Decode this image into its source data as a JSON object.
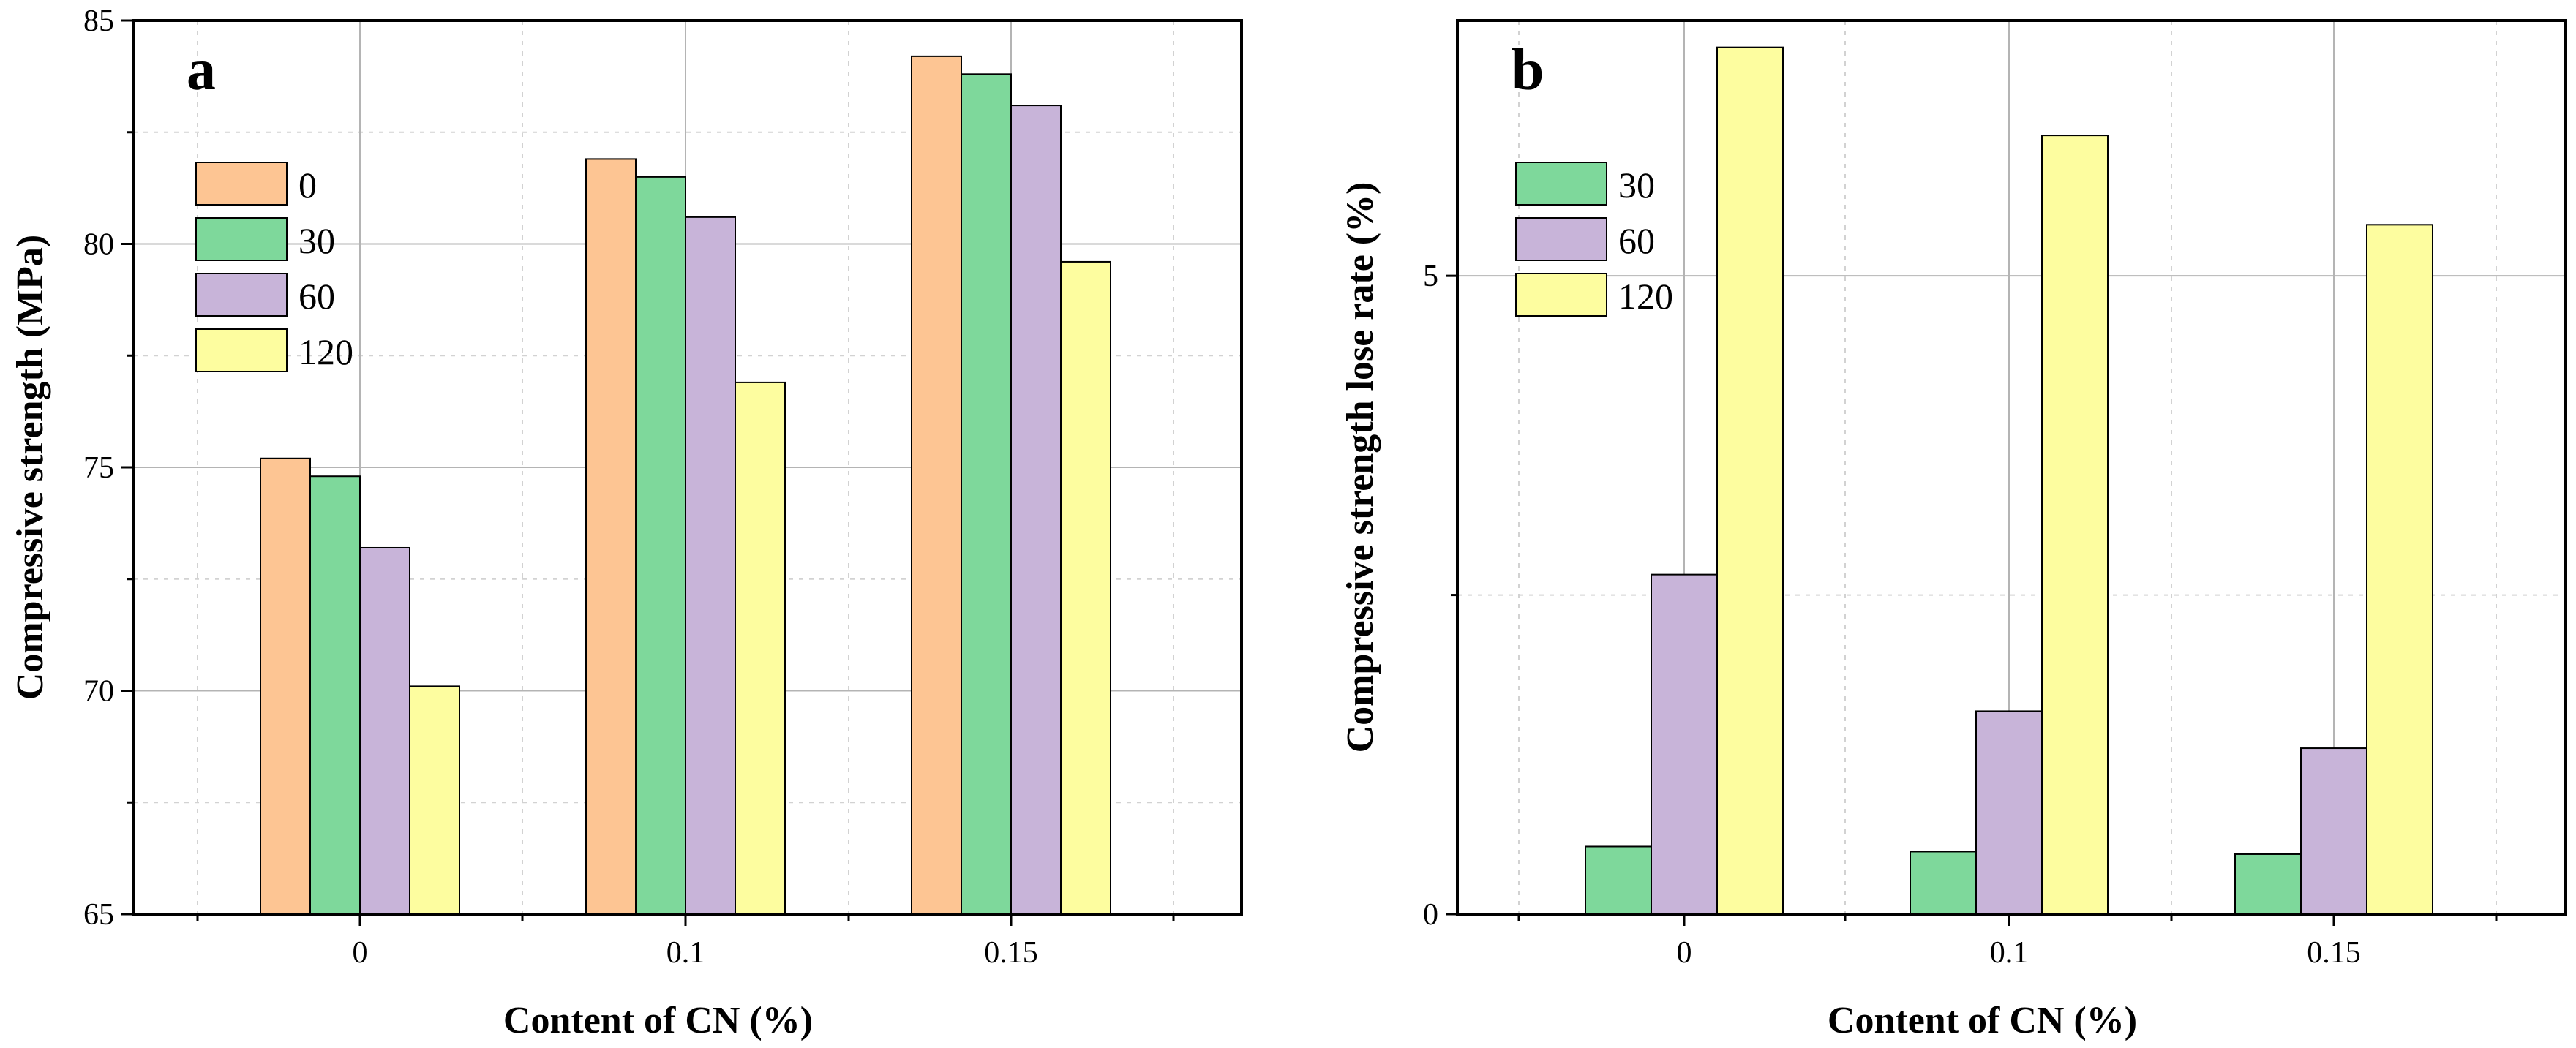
{
  "colors": {
    "0": "#FDC593",
    "30": "#7ED89B",
    "60": "#C8B4D9",
    "120": "#FDFD9F",
    "grid_major": "#b4b4b4",
    "grid_minor": "#d2d2d2",
    "axis": "#000000"
  },
  "chart_data": [
    {
      "type": "bar",
      "panel_label": "a",
      "categories": [
        "0",
        "0.1",
        "0.15"
      ],
      "series": [
        {
          "name": "0",
          "values": [
            75.2,
            81.9,
            84.2
          ]
        },
        {
          "name": "30",
          "values": [
            74.8,
            81.5,
            83.8
          ]
        },
        {
          "name": "60",
          "values": [
            73.2,
            80.6,
            83.1
          ]
        },
        {
          "name": "120",
          "values": [
            70.1,
            76.9,
            79.6
          ]
        }
      ],
      "xlabel": "Content of CN (%)",
      "ylabel": "Compressive strength (MPa)",
      "ylim": [
        65,
        85
      ],
      "yticks": [
        "65",
        "70",
        "75",
        "80",
        "85"
      ],
      "grid": true,
      "legend": "top-left"
    },
    {
      "type": "bar",
      "panel_label": "b",
      "categories": [
        "0",
        "0.1",
        "0.15"
      ],
      "series": [
        {
          "name": "30",
          "values": [
            0.53,
            0.49,
            0.47
          ]
        },
        {
          "name": "60",
          "values": [
            2.66,
            1.59,
            1.3
          ]
        },
        {
          "name": "120",
          "values": [
            6.79,
            6.1,
            5.4
          ]
        }
      ],
      "xlabel": "Content of CN (%)",
      "ylabel": "Compressive strength lose rate (%)",
      "ylim": [
        0,
        7.0
      ],
      "yticks": [
        "0",
        "5"
      ],
      "grid": true,
      "legend": "top-left"
    }
  ]
}
